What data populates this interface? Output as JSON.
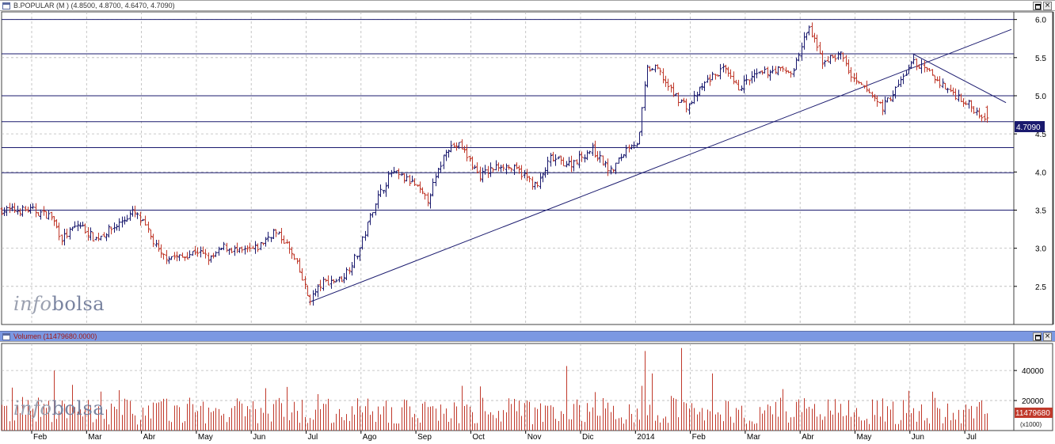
{
  "price_panel": {
    "title": "B.POPULAR (M ) (4.8500, 4.8700, 4.6470, 4.7090)",
    "last_price_label": "4.7090",
    "watermark_part1": "info",
    "watermark_part2": "bolsa",
    "buttons": {
      "maximize": "",
      "close": "×"
    }
  },
  "volume_panel": {
    "title": "Volumen (11479680.0000)",
    "last_volume_label": "11479680",
    "unit_label": "(x1000)",
    "watermark_part1": "info",
    "watermark_part2": "bolsa",
    "buttons": {
      "maximize": "",
      "close": "×"
    }
  },
  "colors": {
    "up_bar": "#1a1a6e",
    "down_bar": "#c0392b",
    "trendline": "#1a1a6e",
    "volume": "#c0392b",
    "grid": "#b8b8b8",
    "header_price": "#ffffff",
    "header_volume": "#7b98e2"
  },
  "chart_data": [
    {
      "type": "ohlc",
      "title": "B.POPULAR (M )",
      "x_ticks": [
        "Feb",
        "Mar",
        "Abr",
        "May",
        "Jun",
        "Jul",
        "Ago",
        "Sep",
        "Oct",
        "Nov",
        "Dic",
        "2014",
        "Feb",
        "Mar",
        "Abr",
        "May",
        "Jun",
        "Jul"
      ],
      "y_ticks": [
        "2.5",
        "3.0",
        "3.5",
        "4.0",
        "4.5",
        "5.0",
        "5.5",
        "6.0"
      ],
      "ylim": [
        2.0,
        6.1
      ],
      "horizontal_lines": [
        6.0,
        5.55,
        5.0,
        4.66,
        4.32,
        3.99,
        3.5
      ],
      "grid": true,
      "last_values": {
        "open": 4.85,
        "high": 4.87,
        "low": 4.647,
        "close": 4.709
      },
      "trendlines": [
        {
          "from": {
            "month_index": 5.05,
            "value": 2.29
          },
          "to": {
            "month_index": 17.85,
            "value": 5.87
          }
        },
        {
          "from": {
            "month_index": 16.05,
            "value": 5.55
          },
          "to": {
            "month_index": 17.75,
            "value": 4.91
          }
        }
      ],
      "close_anchors": [
        [
          0.0,
          3.5
        ],
        [
          0.35,
          3.42
        ],
        [
          0.55,
          3.12
        ],
        [
          0.85,
          3.32
        ],
        [
          1.15,
          3.12
        ],
        [
          1.55,
          3.3
        ],
        [
          1.85,
          3.48
        ],
        [
          2.05,
          3.3
        ],
        [
          2.35,
          2.9
        ],
        [
          2.75,
          2.88
        ],
        [
          3.0,
          2.97
        ],
        [
          3.25,
          2.85
        ],
        [
          3.5,
          3.02
        ],
        [
          3.8,
          2.95
        ],
        [
          4.1,
          3.0
        ],
        [
          4.4,
          3.22
        ],
        [
          4.6,
          3.1
        ],
        [
          4.85,
          2.75
        ],
        [
          5.05,
          2.32
        ],
        [
          5.3,
          2.55
        ],
        [
          5.65,
          2.6
        ],
        [
          5.95,
          2.95
        ],
        [
          6.25,
          3.6
        ],
        [
          6.55,
          4.0
        ],
        [
          6.95,
          3.85
        ],
        [
          7.2,
          3.62
        ],
        [
          7.4,
          4.0
        ],
        [
          7.55,
          4.32
        ],
        [
          7.8,
          4.35
        ],
        [
          8.15,
          3.95
        ],
        [
          8.55,
          4.1
        ],
        [
          8.9,
          4.0
        ],
        [
          9.2,
          3.8
        ],
        [
          9.45,
          4.18
        ],
        [
          9.8,
          4.1
        ],
        [
          10.2,
          4.3
        ],
        [
          10.55,
          4.0
        ],
        [
          10.9,
          4.38
        ],
        [
          11.05,
          4.38
        ],
        [
          11.2,
          5.35
        ],
        [
          11.4,
          5.35
        ],
        [
          11.65,
          5.05
        ],
        [
          11.95,
          4.85
        ],
        [
          12.3,
          5.2
        ],
        [
          12.6,
          5.35
        ],
        [
          12.85,
          5.1
        ],
        [
          13.15,
          5.25
        ],
        [
          13.55,
          5.35
        ],
        [
          13.85,
          5.3
        ],
        [
          14.15,
          5.9
        ],
        [
          14.4,
          5.45
        ],
        [
          14.75,
          5.55
        ],
        [
          14.95,
          5.2
        ],
        [
          15.25,
          5.05
        ],
        [
          15.5,
          4.85
        ],
        [
          15.75,
          5.1
        ],
        [
          16.05,
          5.45
        ],
        [
          16.35,
          5.3
        ],
        [
          16.65,
          5.1
        ],
        [
          16.95,
          4.95
        ],
        [
          17.2,
          4.8
        ],
        [
          17.4,
          4.72
        ]
      ]
    },
    {
      "type": "bar",
      "title": "Volumen",
      "y_ticks": [
        "20000",
        "40000"
      ],
      "ylim": [
        0,
        58000
      ],
      "unit": "(x1000)",
      "last_value": 11479680,
      "typical_range": [
        4000,
        22000
      ],
      "notable_spikes": [
        {
          "month_index": 0.4,
          "value": 40000
        },
        {
          "month_index": 9.75,
          "value": 43000
        },
        {
          "month_index": 11.15,
          "value": 53000
        },
        {
          "month_index": 11.85,
          "value": 55000
        },
        {
          "month_index": 11.3,
          "value": 38000
        },
        {
          "month_index": 12.4,
          "value": 38000
        }
      ]
    }
  ]
}
